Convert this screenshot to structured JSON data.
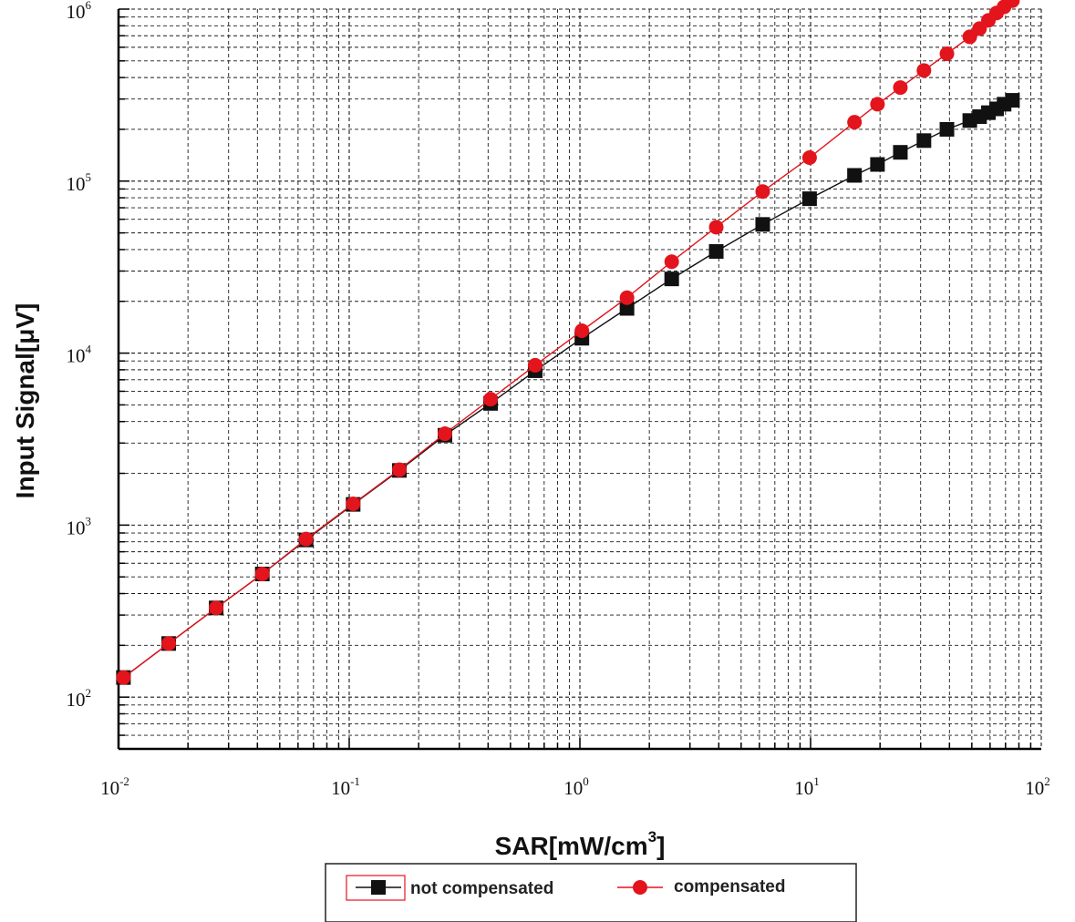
{
  "chart_data": {
    "type": "line",
    "title": "",
    "xlabel": "SAR[mW/cm",
    "xlabel_sup": "3",
    "xlabel_close": "]",
    "ylabel": "Input Signal[μV]",
    "x_scale": "log",
    "y_scale": "log",
    "xlim": [
      0.01,
      100
    ],
    "ylim": [
      50,
      1000000
    ],
    "x_ticks": [
      {
        "value": 0.01,
        "base": "10",
        "exp": "-2"
      },
      {
        "value": 0.1,
        "base": "10",
        "exp": "-1"
      },
      {
        "value": 1,
        "base": "10",
        "exp": "0"
      },
      {
        "value": 10,
        "base": "10",
        "exp": "1"
      },
      {
        "value": 100,
        "base": "10",
        "exp": "2"
      }
    ],
    "y_ticks": [
      {
        "value": 100,
        "base": "10",
        "exp": "2"
      },
      {
        "value": 1000,
        "base": "10",
        "exp": "3"
      },
      {
        "value": 10000,
        "base": "10",
        "exp": "4"
      },
      {
        "value": 100000,
        "base": "10",
        "exp": "5"
      },
      {
        "value": 1000000,
        "base": "10",
        "exp": "6"
      }
    ],
    "grid": true,
    "legend_position": "bottom",
    "series": [
      {
        "name": "not compensated",
        "color": "#111111",
        "line_color": "#111111",
        "marker": "square",
        "x": [
          0.0105,
          0.0165,
          0.0265,
          0.042,
          0.065,
          0.104,
          0.165,
          0.26,
          0.41,
          0.64,
          1.02,
          1.6,
          2.5,
          3.9,
          6.2,
          9.9,
          15.5,
          19.5,
          24.5,
          31,
          39,
          49,
          54,
          59,
          64,
          69,
          75
        ],
        "y": [
          130,
          205,
          330,
          520,
          820,
          1320,
          2080,
          3330,
          5100,
          7900,
          12200,
          18200,
          27000,
          39000,
          56000,
          79000,
          108000,
          125000,
          147000,
          172000,
          200000,
          225000,
          237000,
          250000,
          263000,
          280000,
          295000
        ]
      },
      {
        "name": "compensated",
        "color": "#e3141c",
        "line_color": "#e3141c",
        "marker": "circle",
        "x": [
          0.0105,
          0.0165,
          0.0265,
          0.042,
          0.065,
          0.104,
          0.165,
          0.26,
          0.41,
          0.64,
          1.02,
          1.6,
          2.5,
          3.9,
          6.2,
          9.9,
          15.5,
          19.5,
          24.5,
          31,
          39,
          49,
          54,
          59,
          64,
          69,
          75
        ],
        "y": [
          130,
          205,
          330,
          520,
          830,
          1330,
          2100,
          3400,
          5400,
          8500,
          13500,
          21000,
          34000,
          54000,
          87000,
          137000,
          220000,
          280000,
          350000,
          440000,
          550000,
          690000,
          770000,
          860000,
          950000,
          1030000,
          1120000
        ]
      }
    ]
  }
}
